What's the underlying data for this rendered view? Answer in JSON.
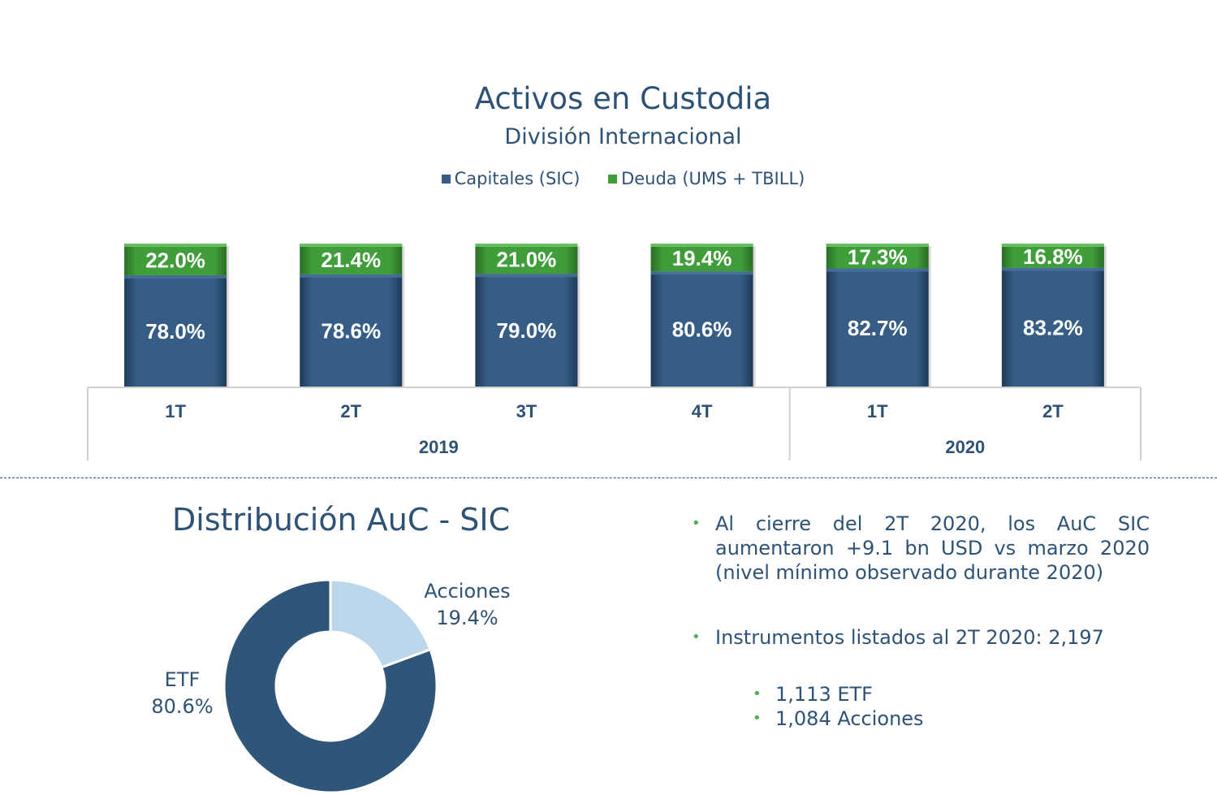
{
  "colors": {
    "capitales": "#355d85",
    "deuda": "#3f9e3a",
    "text": "#2e5275",
    "acciones": "#bcd6ec",
    "etf": "#2f5679"
  },
  "chart_data": [
    {
      "type": "bar",
      "stacked": true,
      "percent": true,
      "title": "Activos en Custodia",
      "subtitle": "División Internacional",
      "categories": [
        "1T",
        "2T",
        "3T",
        "4T",
        "1T",
        "2T"
      ],
      "groups": [
        {
          "label": "2019",
          "count": 4
        },
        {
          "label": "2020",
          "count": 2
        }
      ],
      "series": [
        {
          "name": "Capitales (SIC)",
          "values": [
            78.0,
            78.6,
            79.0,
            80.6,
            82.7,
            83.2
          ],
          "labels": [
            "78.0%",
            "78.6%",
            "79.0%",
            "80.6%",
            "82.7%",
            "83.2%"
          ]
        },
        {
          "name": "Deuda (UMS + TBILL)",
          "values": [
            22.0,
            21.4,
            21.0,
            19.4,
            17.3,
            16.8
          ],
          "labels": [
            "22.0%",
            "21.4%",
            "21.0%",
            "19.4%",
            "17.3%",
            "16.8%"
          ]
        }
      ],
      "legend": "top"
    },
    {
      "type": "pie",
      "donut": true,
      "title": "Distribución AuC - SIC",
      "slices": [
        {
          "name": "Acciones",
          "value": 19.4,
          "label": "19.4%"
        },
        {
          "name": "ETF",
          "value": 80.6,
          "label": "80.6%"
        }
      ]
    }
  ],
  "bullets": [
    "Al cierre del 2T 2020, los AuC SIC aumentaron +9.1 bn USD vs marzo 2020 (nivel mínimo observado durante 2020)",
    "Instrumentos listados al 2T 2020: 2,197"
  ],
  "sub_bullets": [
    "1,113 ETF",
    "1,084 Acciones"
  ],
  "bullet_symbol": "•"
}
